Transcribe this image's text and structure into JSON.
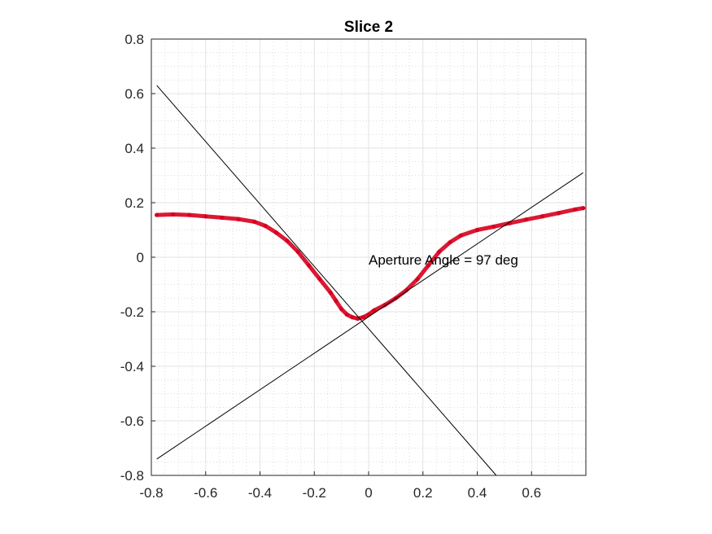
{
  "chart_data": {
    "type": "scatter",
    "title": "Slice 2",
    "xlabel": "",
    "ylabel": "",
    "xlim": [
      -0.8,
      0.8
    ],
    "ylim": [
      -0.8,
      0.8
    ],
    "grid": true,
    "minor_grid": true,
    "x_ticks": [
      -0.8,
      -0.6,
      -0.4,
      -0.2,
      0,
      0.2,
      0.4,
      0.6
    ],
    "x_tick_labels": [
      "-0.8",
      "-0.6",
      "-0.4",
      "-0.2",
      "0",
      "0.2",
      "0.4",
      "0.6"
    ],
    "y_ticks": [
      -0.8,
      -0.6,
      -0.4,
      -0.2,
      0,
      0.2,
      0.4,
      0.6,
      0.8
    ],
    "y_tick_labels": [
      "-0.8",
      "-0.6",
      "-0.4",
      "-0.2",
      "0",
      "0.2",
      "0.4",
      "0.6",
      "0.8"
    ],
    "series": [
      {
        "name": "profile points",
        "color": "#d7001f",
        "x": [
          -0.78,
          -0.72,
          -0.66,
          -0.6,
          -0.54,
          -0.48,
          -0.42,
          -0.38,
          -0.34,
          -0.3,
          -0.26,
          -0.22,
          -0.18,
          -0.14,
          -0.12,
          -0.1,
          -0.08,
          -0.06,
          -0.04,
          -0.02,
          0.0,
          0.02,
          0.06,
          0.1,
          0.14,
          0.18,
          0.22,
          0.26,
          0.3,
          0.34,
          0.4,
          0.46,
          0.52,
          0.58,
          0.64,
          0.7,
          0.76,
          0.79
        ],
        "y": [
          0.155,
          0.157,
          0.155,
          0.15,
          0.145,
          0.14,
          0.13,
          0.115,
          0.09,
          0.06,
          0.02,
          -0.03,
          -0.08,
          -0.13,
          -0.16,
          -0.19,
          -0.21,
          -0.22,
          -0.225,
          -0.22,
          -0.21,
          -0.195,
          -0.175,
          -0.15,
          -0.12,
          -0.08,
          -0.03,
          0.02,
          0.055,
          0.08,
          0.1,
          0.112,
          0.125,
          0.138,
          0.15,
          0.162,
          0.175,
          0.18
        ]
      }
    ],
    "lines": [
      {
        "name": "left fitted line",
        "color": "#000000",
        "x": [
          -0.78,
          0.47
        ],
        "y": [
          0.63,
          -0.8
        ]
      },
      {
        "name": "right fitted line",
        "color": "#000000",
        "x": [
          -0.78,
          0.79
        ],
        "y": [
          -0.74,
          0.31
        ]
      }
    ],
    "annotations": [
      {
        "text": "Aperture Angle = 97 deg",
        "x": 0.0,
        "y": 0.0
      }
    ]
  }
}
